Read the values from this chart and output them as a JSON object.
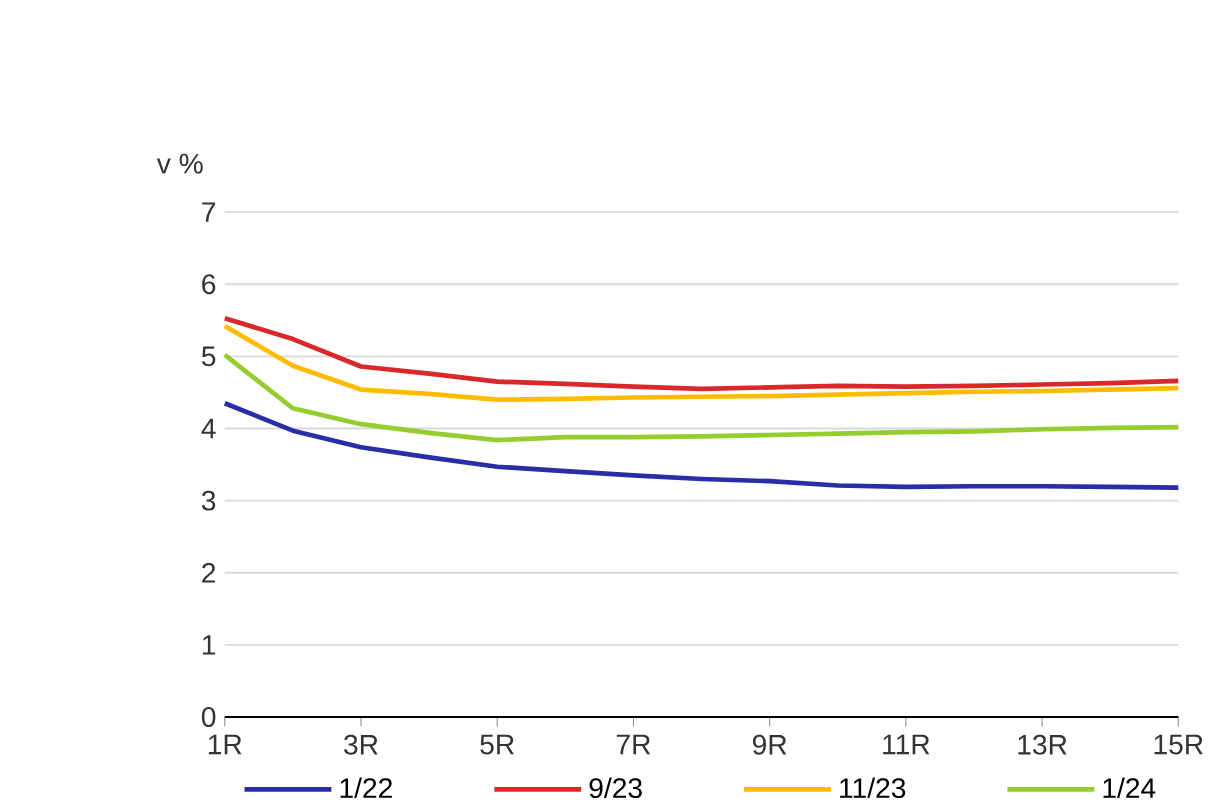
{
  "chart_data": {
    "type": "line",
    "ylabel": "v %",
    "categories": [
      "1R",
      null,
      "3R",
      null,
      "5R",
      null,
      "7R",
      null,
      "9R",
      null,
      "11R",
      null,
      "13R",
      null,
      "15R"
    ],
    "series": [
      {
        "name": "1/22",
        "color": "#2a2ea6",
        "values": [
          4.35,
          3.97,
          3.74,
          3.6,
          3.47,
          3.41,
          3.35,
          3.3,
          3.27,
          3.21,
          3.19,
          3.2,
          3.2,
          3.19,
          3.18
        ]
      },
      {
        "name": "9/23",
        "color": "#d9282a",
        "values": [
          5.53,
          5.24,
          4.86,
          4.76,
          4.65,
          4.62,
          4.58,
          4.55,
          4.57,
          4.59,
          4.58,
          4.59,
          4.61,
          4.63,
          4.66
        ]
      },
      {
        "name": "11/23",
        "color": "#ffbb00",
        "values": [
          5.42,
          4.87,
          4.54,
          4.48,
          4.4,
          4.41,
          4.43,
          4.44,
          4.45,
          4.47,
          4.49,
          4.51,
          4.52,
          4.54,
          4.56
        ]
      },
      {
        "name": "1/24",
        "color": "#95cc2e",
        "values": [
          5.02,
          4.28,
          4.06,
          3.94,
          3.84,
          3.88,
          3.88,
          3.89,
          3.91,
          3.93,
          3.95,
          3.96,
          3.99,
          4.01,
          4.02
        ]
      }
    ],
    "ylim": [
      0,
      7
    ],
    "yticks": [
      0,
      1,
      2,
      3,
      4,
      5,
      6,
      7
    ],
    "grid": "y",
    "legend": "bottom",
    "marker": "none",
    "line_style": "solid"
  }
}
